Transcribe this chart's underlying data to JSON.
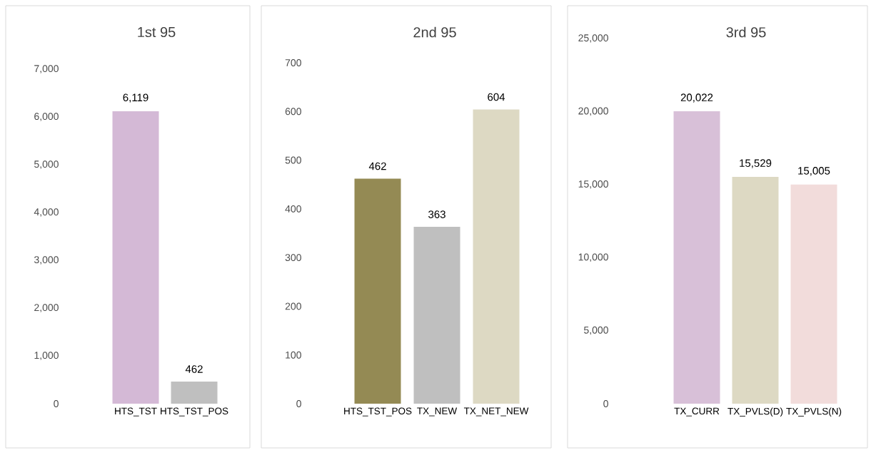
{
  "chart_data": [
    {
      "type": "bar",
      "title": "1st 95",
      "categories": [
        "HTS_TST",
        "HTS_TST_POS"
      ],
      "values": [
        6119,
        462
      ],
      "colors": [
        "#d4b9d6",
        "#bfbfbf"
      ],
      "value_labels": [
        "6,119",
        "462"
      ],
      "ylim": [
        0,
        7000
      ],
      "yticks": [
        0,
        {
          "value": 1000,
          "label": "1,000"
        },
        {
          "value": 2000,
          "label": "2,000"
        },
        {
          "value": 3000,
          "label": "3,000"
        },
        {
          "value": 4000,
          "label": "4,000"
        },
        {
          "value": 5000,
          "label": "5,000"
        },
        {
          "value": 6000,
          "label": "6,000"
        },
        {
          "value": 7000,
          "label": "7,000"
        }
      ]
    },
    {
      "type": "bar",
      "title": "2nd 95",
      "categories": [
        "HTS_TST_POS",
        "TX_NEW",
        "TX_NET_NEW"
      ],
      "values": [
        462,
        363,
        604
      ],
      "colors": [
        "#948a54",
        "#bfbfbf",
        "#ddd9c3"
      ],
      "value_labels": [
        "462",
        "363",
        "604"
      ],
      "ylim": [
        0,
        700
      ],
      "yticks": [
        0,
        100,
        200,
        300,
        400,
        500,
        600,
        700
      ]
    },
    {
      "type": "bar",
      "title": "3rd  95",
      "categories": [
        "TX_CURR",
        "TX_PVLS(D)",
        "TX_PVLS(N)"
      ],
      "values": [
        20022,
        15529,
        15005
      ],
      "colors": [
        "#d8c0d8",
        "#ddd9c3",
        "#f2dcdb"
      ],
      "value_labels": [
        "20,022",
        "15,529",
        "15,005"
      ],
      "ylim": [
        0,
        25000
      ],
      "yticks": [
        0,
        {
          "value": 5000,
          "label": "5,000"
        },
        {
          "value": 10000,
          "label": "10,000"
        },
        {
          "value": 15000,
          "label": "15,000"
        },
        {
          "value": 20000,
          "label": "20,000"
        },
        {
          "value": 25000,
          "label": "25,000"
        }
      ]
    }
  ]
}
